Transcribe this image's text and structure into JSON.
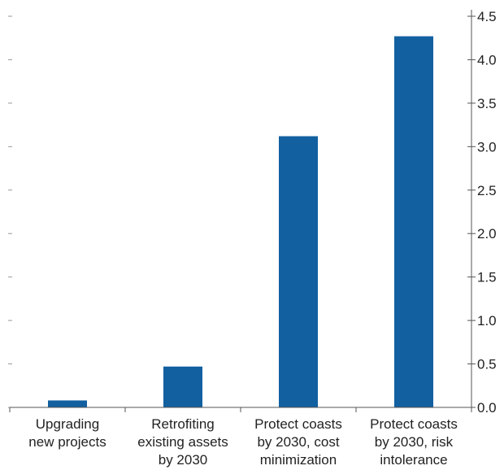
{
  "chart_data": {
    "type": "bar",
    "categories": [
      [
        "Upgrading",
        "new projects"
      ],
      [
        "Retrofiting",
        "existing assets",
        "by 2030"
      ],
      [
        "Protect coasts",
        "by 2030, cost",
        "minimization"
      ],
      [
        "Protect coasts",
        "by 2030, risk",
        "intolerance"
      ]
    ],
    "values": [
      0.08,
      0.47,
      3.12,
      4.27
    ],
    "ylim": [
      0,
      4.5
    ],
    "yticks": [
      "0.0",
      "0.5",
      "1.0",
      "1.5",
      "2.0",
      "2.5",
      "3.0",
      "3.5",
      "4.0",
      "4.5"
    ],
    "y_axis_side": "right",
    "grid": false,
    "bar_color": "#1260a0",
    "title": "",
    "xlabel": "",
    "ylabel": ""
  }
}
